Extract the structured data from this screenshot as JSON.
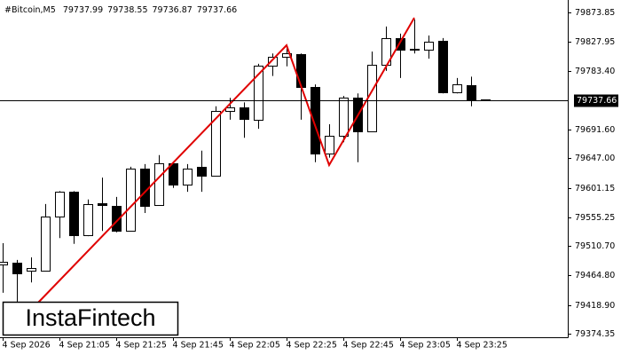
{
  "watermark": "InstaFintech",
  "chart_data": {
    "type": "candlestick",
    "title": "#Bitcoin,M5",
    "categories": [
      "4 Sep 2026",
      null,
      null,
      null,
      "4 Sep 21:05",
      null,
      null,
      null,
      "4 Sep 21:25",
      null,
      null,
      null,
      "4 Sep 21:45",
      null,
      null,
      null,
      "4 Sep 22:05",
      null,
      null,
      null,
      "4 Sep 22:25",
      null,
      null,
      null,
      "4 Sep 22:45",
      null,
      null,
      null,
      "4 Sep 23:05",
      null,
      null,
      null,
      "4 Sep 23:25",
      null,
      null
    ],
    "open": [
      79482,
      79485,
      79472,
      79472,
      79556,
      79595,
      79527,
      79577,
      79573,
      79534,
      79631,
      79574,
      79639,
      79606,
      79634,
      79620,
      79721,
      79726,
      79707,
      79791,
      79805,
      79809,
      79758,
      79654,
      79682,
      79741,
      79689,
      79793,
      79834,
      79817,
      79816,
      79830,
      79750,
      79761,
      79737.99
    ],
    "high": [
      79515,
      79489,
      79493,
      79576,
      79596,
      79596,
      79583,
      79617,
      79587,
      79634,
      79638,
      79652,
      79642,
      79638,
      79659,
      79728,
      79741,
      79734,
      79794,
      79810,
      79819,
      79810,
      79762,
      79700,
      79744,
      79748,
      79813,
      79852,
      79841,
      79863,
      79838,
      79834,
      79772,
      79774,
      79738.55
    ],
    "low": [
      79438,
      79424,
      79454,
      79472,
      79523,
      79514,
      79526,
      79534,
      79532,
      79533,
      79562,
      79573,
      79601,
      79595,
      79595,
      79619,
      79707,
      79679,
      79693,
      79775,
      79790,
      79707,
      79641,
      79648,
      79672,
      79641,
      79688,
      79783,
      79772,
      79810,
      79802,
      79748,
      79748,
      79728,
      79736.87
    ],
    "close": [
      79486,
      79468,
      79476,
      79556,
      79595,
      79527,
      79576,
      79574,
      79534,
      79631,
      79573,
      79639,
      79606,
      79631,
      79620,
      79721,
      79726,
      79708,
      79791,
      79805,
      79810,
      79758,
      79654,
      79682,
      79741,
      79689,
      79793,
      79834,
      79816,
      79816,
      79828,
      79750,
      79762,
      79739,
      79737.66
    ],
    "up_color": "#ffffff",
    "down_color": "#000000",
    "ylim": [
      79368.8,
      79893.2
    ],
    "yticks": [
      79873.85,
      79827.95,
      {
        "value": 79783.4,
        "label": "79783.40"
      },
      {
        "value": 79691.6,
        "label": "79691.60"
      },
      {
        "value": 79647,
        "label": "79647.00"
      },
      79601.15,
      79555.25,
      {
        "value": 79510.7,
        "label": "79510.70"
      },
      {
        "value": 79464.8,
        "label": "79464.80"
      },
      {
        "value": 79418.9,
        "label": "79418.90"
      },
      79374.35
    ]
  }
}
